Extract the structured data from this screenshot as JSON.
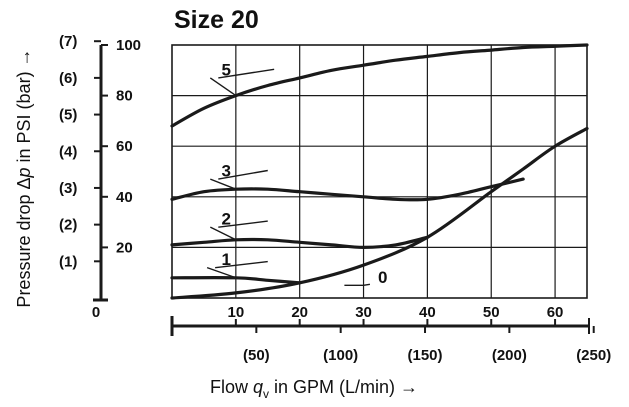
{
  "chart_data": {
    "type": "line",
    "title": "Size 20",
    "ylabel": "Pressure drop Δp in PSI (bar) →",
    "xlabel": "Flow q_v in GPM (L/min) →",
    "xlim": [
      0,
      65
    ],
    "ylim": [
      0,
      100
    ],
    "grid": true,
    "x_ticks": [
      "10",
      "20",
      "30",
      "40",
      "50",
      "60"
    ],
    "x_secondary_ticks": [
      "(50)",
      "(100)",
      "(150)",
      "(200)",
      "(250)"
    ],
    "y_origin_label": "0",
    "y_ticks": [
      "20",
      "40",
      "60",
      "80",
      "100"
    ],
    "y_secondary_ticks": [
      "(1)",
      "(2)",
      "(3)",
      "(4)",
      "(5)",
      "(6)",
      "(7)"
    ],
    "series": [
      {
        "name": "0",
        "points": [
          [
            0,
            0
          ],
          [
            10,
            2
          ],
          [
            20,
            6
          ],
          [
            30,
            13
          ],
          [
            40,
            24
          ],
          [
            50,
            42
          ],
          [
            55,
            51
          ],
          [
            60,
            60
          ],
          [
            65,
            67
          ]
        ]
      },
      {
        "name": "1",
        "points": [
          [
            0,
            8
          ],
          [
            10,
            8
          ],
          [
            15,
            7
          ],
          [
            20,
            6
          ]
        ]
      },
      {
        "name": "2",
        "points": [
          [
            0,
            21
          ],
          [
            5,
            22
          ],
          [
            10,
            23
          ],
          [
            15,
            23
          ],
          [
            20,
            22
          ],
          [
            25,
            21
          ],
          [
            30,
            20
          ],
          [
            35,
            21
          ],
          [
            40,
            24
          ]
        ]
      },
      {
        "name": "3",
        "points": [
          [
            0,
            39
          ],
          [
            5,
            42
          ],
          [
            10,
            43
          ],
          [
            15,
            43
          ],
          [
            20,
            42
          ],
          [
            25,
            41
          ],
          [
            30,
            40
          ],
          [
            35,
            39
          ],
          [
            40,
            39
          ],
          [
            45,
            41
          ],
          [
            50,
            44
          ],
          [
            55,
            47
          ]
        ]
      },
      {
        "name": "5",
        "points": [
          [
            0,
            68
          ],
          [
            5,
            75
          ],
          [
            10,
            80
          ],
          [
            15,
            84
          ],
          [
            20,
            87
          ],
          [
            25,
            90
          ],
          [
            30,
            92
          ],
          [
            35,
            94
          ],
          [
            40,
            95.5
          ],
          [
            45,
            97
          ],
          [
            50,
            98
          ],
          [
            55,
            99
          ],
          [
            60,
            99.5
          ],
          [
            65,
            100
          ]
        ]
      }
    ]
  }
}
